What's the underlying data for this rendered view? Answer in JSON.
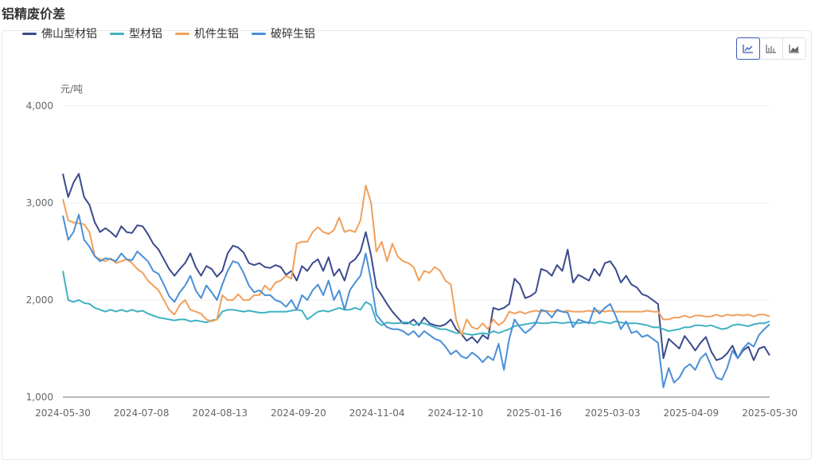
{
  "page": {
    "title": "铝精废价差"
  },
  "toolbar": {
    "buttons": [
      {
        "name": "line-chart-button",
        "icon": "line-chart-icon",
        "active": true
      },
      {
        "name": "bar-chart-button",
        "icon": "bar-chart-icon",
        "active": false
      },
      {
        "name": "area-chart-button",
        "icon": "area-chart-icon",
        "active": false
      }
    ]
  },
  "chart_data": {
    "type": "line",
    "title": "",
    "ylabel": "元/吨",
    "ylim": [
      1000,
      4000
    ],
    "y_ticks": [
      "1,000",
      "2,000",
      "3,000",
      "4,000"
    ],
    "x_ticks": [
      "2024-05-30",
      "2024-07-08",
      "2024-08-13",
      "2024-09-20",
      "2024-11-04",
      "2024-12-10",
      "2025-01-16",
      "2025-03-03",
      "2025-04-09",
      "2025-05-30"
    ],
    "legend_position": "top-left",
    "grid": true,
    "series": [
      {
        "name": "佛山型材铝",
        "color": "#3b4a8c",
        "values": [
          3300,
          3060,
          3210,
          3300,
          3060,
          2980,
          2800,
          2700,
          2740,
          2700,
          2650,
          2760,
          2700,
          2690,
          2770,
          2760,
          2680,
          2580,
          2520,
          2420,
          2320,
          2250,
          2320,
          2380,
          2480,
          2340,
          2250,
          2350,
          2320,
          2240,
          2300,
          2480,
          2560,
          2540,
          2490,
          2380,
          2360,
          2380,
          2340,
          2330,
          2360,
          2340,
          2260,
          2300,
          2200,
          2350,
          2300,
          2380,
          2420,
          2300,
          2440,
          2250,
          2320,
          2200,
          2380,
          2420,
          2500,
          2700,
          2460,
          2130,
          2050,
          1960,
          1880,
          1820,
          1760,
          1760,
          1800,
          1740,
          1820,
          1760,
          1740,
          1730,
          1750,
          1800,
          1700,
          1650,
          1580,
          1620,
          1560,
          1640,
          1600,
          1920,
          1900,
          1920,
          1960,
          2220,
          2160,
          2020,
          2040,
          2080,
          2320,
          2300,
          2250,
          2360,
          2300,
          2520,
          2180,
          2260,
          2230,
          2200,
          2320,
          2250,
          2380,
          2400,
          2320,
          2180,
          2250,
          2160,
          2130,
          2060,
          2040,
          2000,
          1960,
          1400,
          1600,
          1550,
          1500,
          1630,
          1560,
          1480,
          1560,
          1620,
          1470,
          1380,
          1400,
          1450,
          1530,
          1400,
          1480,
          1520,
          1380,
          1500,
          1520,
          1430
        ]
      },
      {
        "name": "型材铝",
        "color": "#3fb1c2",
        "values": [
          2300,
          2000,
          1980,
          2000,
          1970,
          1960,
          1920,
          1900,
          1880,
          1900,
          1880,
          1900,
          1880,
          1900,
          1880,
          1890,
          1860,
          1840,
          1820,
          1810,
          1800,
          1790,
          1800,
          1800,
          1780,
          1790,
          1780,
          1770,
          1790,
          1800,
          1880,
          1900,
          1900,
          1890,
          1880,
          1890,
          1880,
          1870,
          1870,
          1880,
          1880,
          1880,
          1880,
          1890,
          1900,
          1890,
          1800,
          1840,
          1880,
          1890,
          1880,
          1900,
          1920,
          1900,
          1900,
          1920,
          1900,
          1980,
          1950,
          1780,
          1740,
          1770,
          1760,
          1760,
          1770,
          1770,
          1740,
          1760,
          1760,
          1740,
          1720,
          1700,
          1700,
          1680,
          1660,
          1660,
          1650,
          1640,
          1650,
          1660,
          1650,
          1680,
          1660,
          1680,
          1700,
          1730,
          1740,
          1750,
          1760,
          1770,
          1760,
          1760,
          1770,
          1770,
          1760,
          1770,
          1770,
          1760,
          1770,
          1770,
          1760,
          1780,
          1770,
          1760,
          1780,
          1770,
          1760,
          1760,
          1760,
          1750,
          1740,
          1720,
          1720,
          1700,
          1680,
          1690,
          1700,
          1720,
          1720,
          1740,
          1740,
          1730,
          1740,
          1720,
          1700,
          1710,
          1740,
          1750,
          1740,
          1730,
          1750,
          1760,
          1760,
          1780
        ]
      },
      {
        "name": "机件生铝",
        "color": "#f0a05b",
        "values": [
          3040,
          2820,
          2800,
          2790,
          2780,
          2700,
          2450,
          2420,
          2400,
          2430,
          2380,
          2400,
          2420,
          2380,
          2320,
          2280,
          2200,
          2150,
          2100,
          2000,
          1900,
          1850,
          1950,
          2000,
          1900,
          1880,
          1860,
          1800,
          1780,
          1800,
          2050,
          2000,
          2000,
          2060,
          2000,
          2000,
          2050,
          2050,
          2150,
          2100,
          2180,
          2200,
          2250,
          2220,
          2580,
          2600,
          2600,
          2700,
          2750,
          2700,
          2680,
          2720,
          2850,
          2700,
          2720,
          2700,
          2820,
          3180,
          3000,
          2500,
          2600,
          2400,
          2580,
          2450,
          2400,
          2380,
          2340,
          2200,
          2300,
          2280,
          2340,
          2300,
          2200,
          2160,
          1800,
          1640,
          1800,
          1720,
          1700,
          1760,
          1700,
          1800,
          1740,
          1780,
          1880,
          1860,
          1880,
          1860,
          1880,
          1890,
          1880,
          1890,
          1880,
          1890,
          1880,
          1890,
          1880,
          1880,
          1880,
          1890,
          1880,
          1890,
          1880,
          1890,
          1880,
          1880,
          1880,
          1880,
          1880,
          1880,
          1890,
          1880,
          1880,
          1800,
          1800,
          1820,
          1820,
          1840,
          1820,
          1840,
          1840,
          1830,
          1830,
          1850,
          1830,
          1850,
          1840,
          1850,
          1840,
          1850,
          1830,
          1850,
          1850,
          1830
        ]
      },
      {
        "name": "破碎生铝",
        "color": "#4a8fd6",
        "values": [
          2870,
          2620,
          2700,
          2880,
          2620,
          2550,
          2450,
          2400,
          2430,
          2420,
          2400,
          2480,
          2420,
          2410,
          2500,
          2450,
          2400,
          2300,
          2270,
          2160,
          2040,
          1980,
          2080,
          2150,
          2250,
          2100,
          2020,
          2150,
          2080,
          2000,
          2160,
          2300,
          2400,
          2380,
          2280,
          2150,
          2080,
          2100,
          2050,
          2050,
          2000,
          1980,
          1930,
          2000,
          1900,
          2050,
          2000,
          2100,
          2160,
          2050,
          2200,
          2000,
          2100,
          1900,
          2100,
          2180,
          2250,
          2480,
          2200,
          1850,
          1780,
          1720,
          1700,
          1700,
          1680,
          1640,
          1680,
          1620,
          1680,
          1640,
          1600,
          1580,
          1520,
          1440,
          1480,
          1420,
          1400,
          1460,
          1420,
          1360,
          1420,
          1380,
          1550,
          1280,
          1600,
          1800,
          1720,
          1660,
          1700,
          1760,
          1900,
          1880,
          1820,
          1900,
          1880,
          1870,
          1720,
          1800,
          1780,
          1760,
          1920,
          1860,
          1920,
          1960,
          1840,
          1700,
          1780,
          1660,
          1680,
          1620,
          1640,
          1600,
          1560,
          1100,
          1300,
          1150,
          1200,
          1300,
          1340,
          1280,
          1400,
          1450,
          1320,
          1200,
          1180,
          1300,
          1480,
          1400,
          1500,
          1560,
          1520,
          1640,
          1700,
          1750
        ]
      }
    ]
  }
}
